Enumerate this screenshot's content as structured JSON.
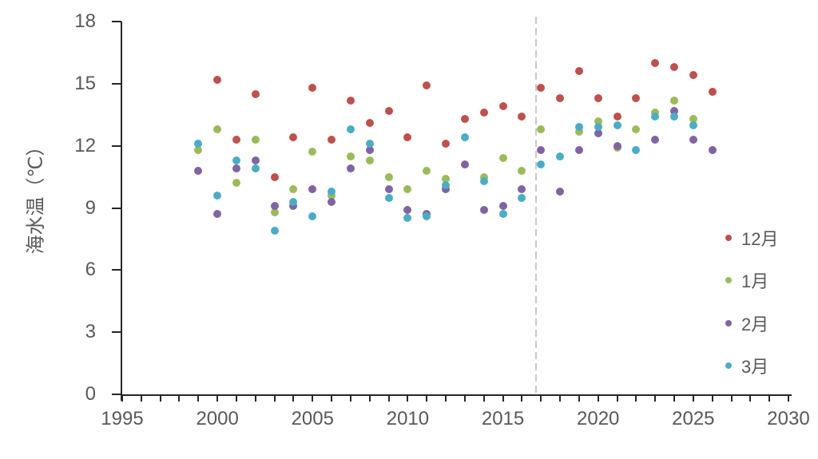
{
  "chart_data": {
    "type": "scatter",
    "title": "",
    "xlabel": "",
    "ylabel": "海水温（℃）",
    "xlim": [
      1995,
      2030
    ],
    "ylim": [
      0,
      18
    ],
    "x_ticks": [
      1995,
      2000,
      2005,
      2010,
      2015,
      2020,
      2025,
      2030
    ],
    "x_minor_tick_interval": 1,
    "y_ticks": [
      0,
      3,
      6,
      9,
      12,
      15,
      18
    ],
    "grid": false,
    "legend_position": "right",
    "axis_color": "#262626",
    "label_color": "#595959",
    "reference_line": {
      "x": 2016.75,
      "style": "dashed",
      "color": "#c9c9c9"
    },
    "series": [
      {
        "name": "12月",
        "color": "#c0504d",
        "points": [
          [
            2000,
            15.2
          ],
          [
            2001,
            12.3
          ],
          [
            2002,
            14.5
          ],
          [
            2003,
            10.5
          ],
          [
            2004,
            12.4
          ],
          [
            2005,
            14.8
          ],
          [
            2006,
            12.3
          ],
          [
            2007,
            14.2
          ],
          [
            2008,
            13.1
          ],
          [
            2009,
            13.7
          ],
          [
            2010,
            12.4
          ],
          [
            2011,
            14.9
          ],
          [
            2012,
            12.1
          ],
          [
            2013,
            13.3
          ],
          [
            2014,
            13.6
          ],
          [
            2015,
            13.9
          ],
          [
            2016,
            13.4
          ],
          [
            2017,
            14.8
          ],
          [
            2018,
            14.3
          ],
          [
            2019,
            15.6
          ],
          [
            2020,
            14.3
          ],
          [
            2021,
            13.4
          ],
          [
            2022,
            14.3
          ],
          [
            2023,
            16.0
          ],
          [
            2024,
            15.8
          ],
          [
            2025,
            15.4
          ],
          [
            2026,
            14.6
          ]
        ]
      },
      {
        "name": "1月",
        "color": "#9bbb59",
        "points": [
          [
            1999,
            11.8
          ],
          [
            2000,
            12.8
          ],
          [
            2001,
            10.2
          ],
          [
            2002,
            12.3
          ],
          [
            2003,
            8.8
          ],
          [
            2004,
            9.9
          ],
          [
            2005,
            11.7
          ],
          [
            2006,
            9.6
          ],
          [
            2007,
            11.5
          ],
          [
            2008,
            11.3
          ],
          [
            2009,
            10.5
          ],
          [
            2010,
            9.9
          ],
          [
            2011,
            10.8
          ],
          [
            2012,
            10.4
          ],
          [
            2014,
            10.5
          ],
          [
            2015,
            11.4
          ],
          [
            2016,
            10.8
          ],
          [
            2017,
            12.8
          ],
          [
            2019,
            12.7
          ],
          [
            2020,
            13.2
          ],
          [
            2021,
            11.9
          ],
          [
            2022,
            12.8
          ],
          [
            2023,
            13.6
          ],
          [
            2024,
            14.2
          ],
          [
            2025,
            13.3
          ]
        ]
      },
      {
        "name": "2月",
        "color": "#8064a2",
        "points": [
          [
            1999,
            10.8
          ],
          [
            2000,
            8.7
          ],
          [
            2001,
            10.9
          ],
          [
            2002,
            11.3
          ],
          [
            2003,
            9.1
          ],
          [
            2004,
            9.1
          ],
          [
            2005,
            9.9
          ],
          [
            2006,
            9.3
          ],
          [
            2007,
            10.9
          ],
          [
            2008,
            11.8
          ],
          [
            2009,
            9.9
          ],
          [
            2010,
            8.9
          ],
          [
            2011,
            8.7
          ],
          [
            2012,
            9.9
          ],
          [
            2013,
            11.1
          ],
          [
            2014,
            8.9
          ],
          [
            2015,
            9.1
          ],
          [
            2016,
            9.9
          ],
          [
            2017,
            11.8
          ],
          [
            2018,
            9.8
          ],
          [
            2019,
            11.8
          ],
          [
            2020,
            12.6
          ],
          [
            2021,
            12.0
          ],
          [
            2023,
            12.3
          ],
          [
            2024,
            13.7
          ],
          [
            2025,
            12.3
          ],
          [
            2026,
            11.8
          ]
        ]
      },
      {
        "name": "3月",
        "color": "#4bacc6",
        "points": [
          [
            1999,
            12.1
          ],
          [
            2000,
            9.6
          ],
          [
            2001,
            11.3
          ],
          [
            2002,
            10.9
          ],
          [
            2003,
            7.9
          ],
          [
            2004,
            9.3
          ],
          [
            2005,
            8.6
          ],
          [
            2006,
            9.8
          ],
          [
            2007,
            12.8
          ],
          [
            2008,
            12.1
          ],
          [
            2009,
            9.5
          ],
          [
            2010,
            8.5
          ],
          [
            2011,
            8.6
          ],
          [
            2012,
            10.1
          ],
          [
            2013,
            12.4
          ],
          [
            2014,
            10.3
          ],
          [
            2015,
            8.7
          ],
          [
            2016,
            9.5
          ],
          [
            2017,
            11.1
          ],
          [
            2018,
            11.5
          ],
          [
            2019,
            12.9
          ],
          [
            2020,
            12.9
          ],
          [
            2021,
            13.0
          ],
          [
            2022,
            11.8
          ],
          [
            2023,
            13.4
          ],
          [
            2024,
            13.4
          ],
          [
            2025,
            13.0
          ]
        ]
      }
    ]
  }
}
